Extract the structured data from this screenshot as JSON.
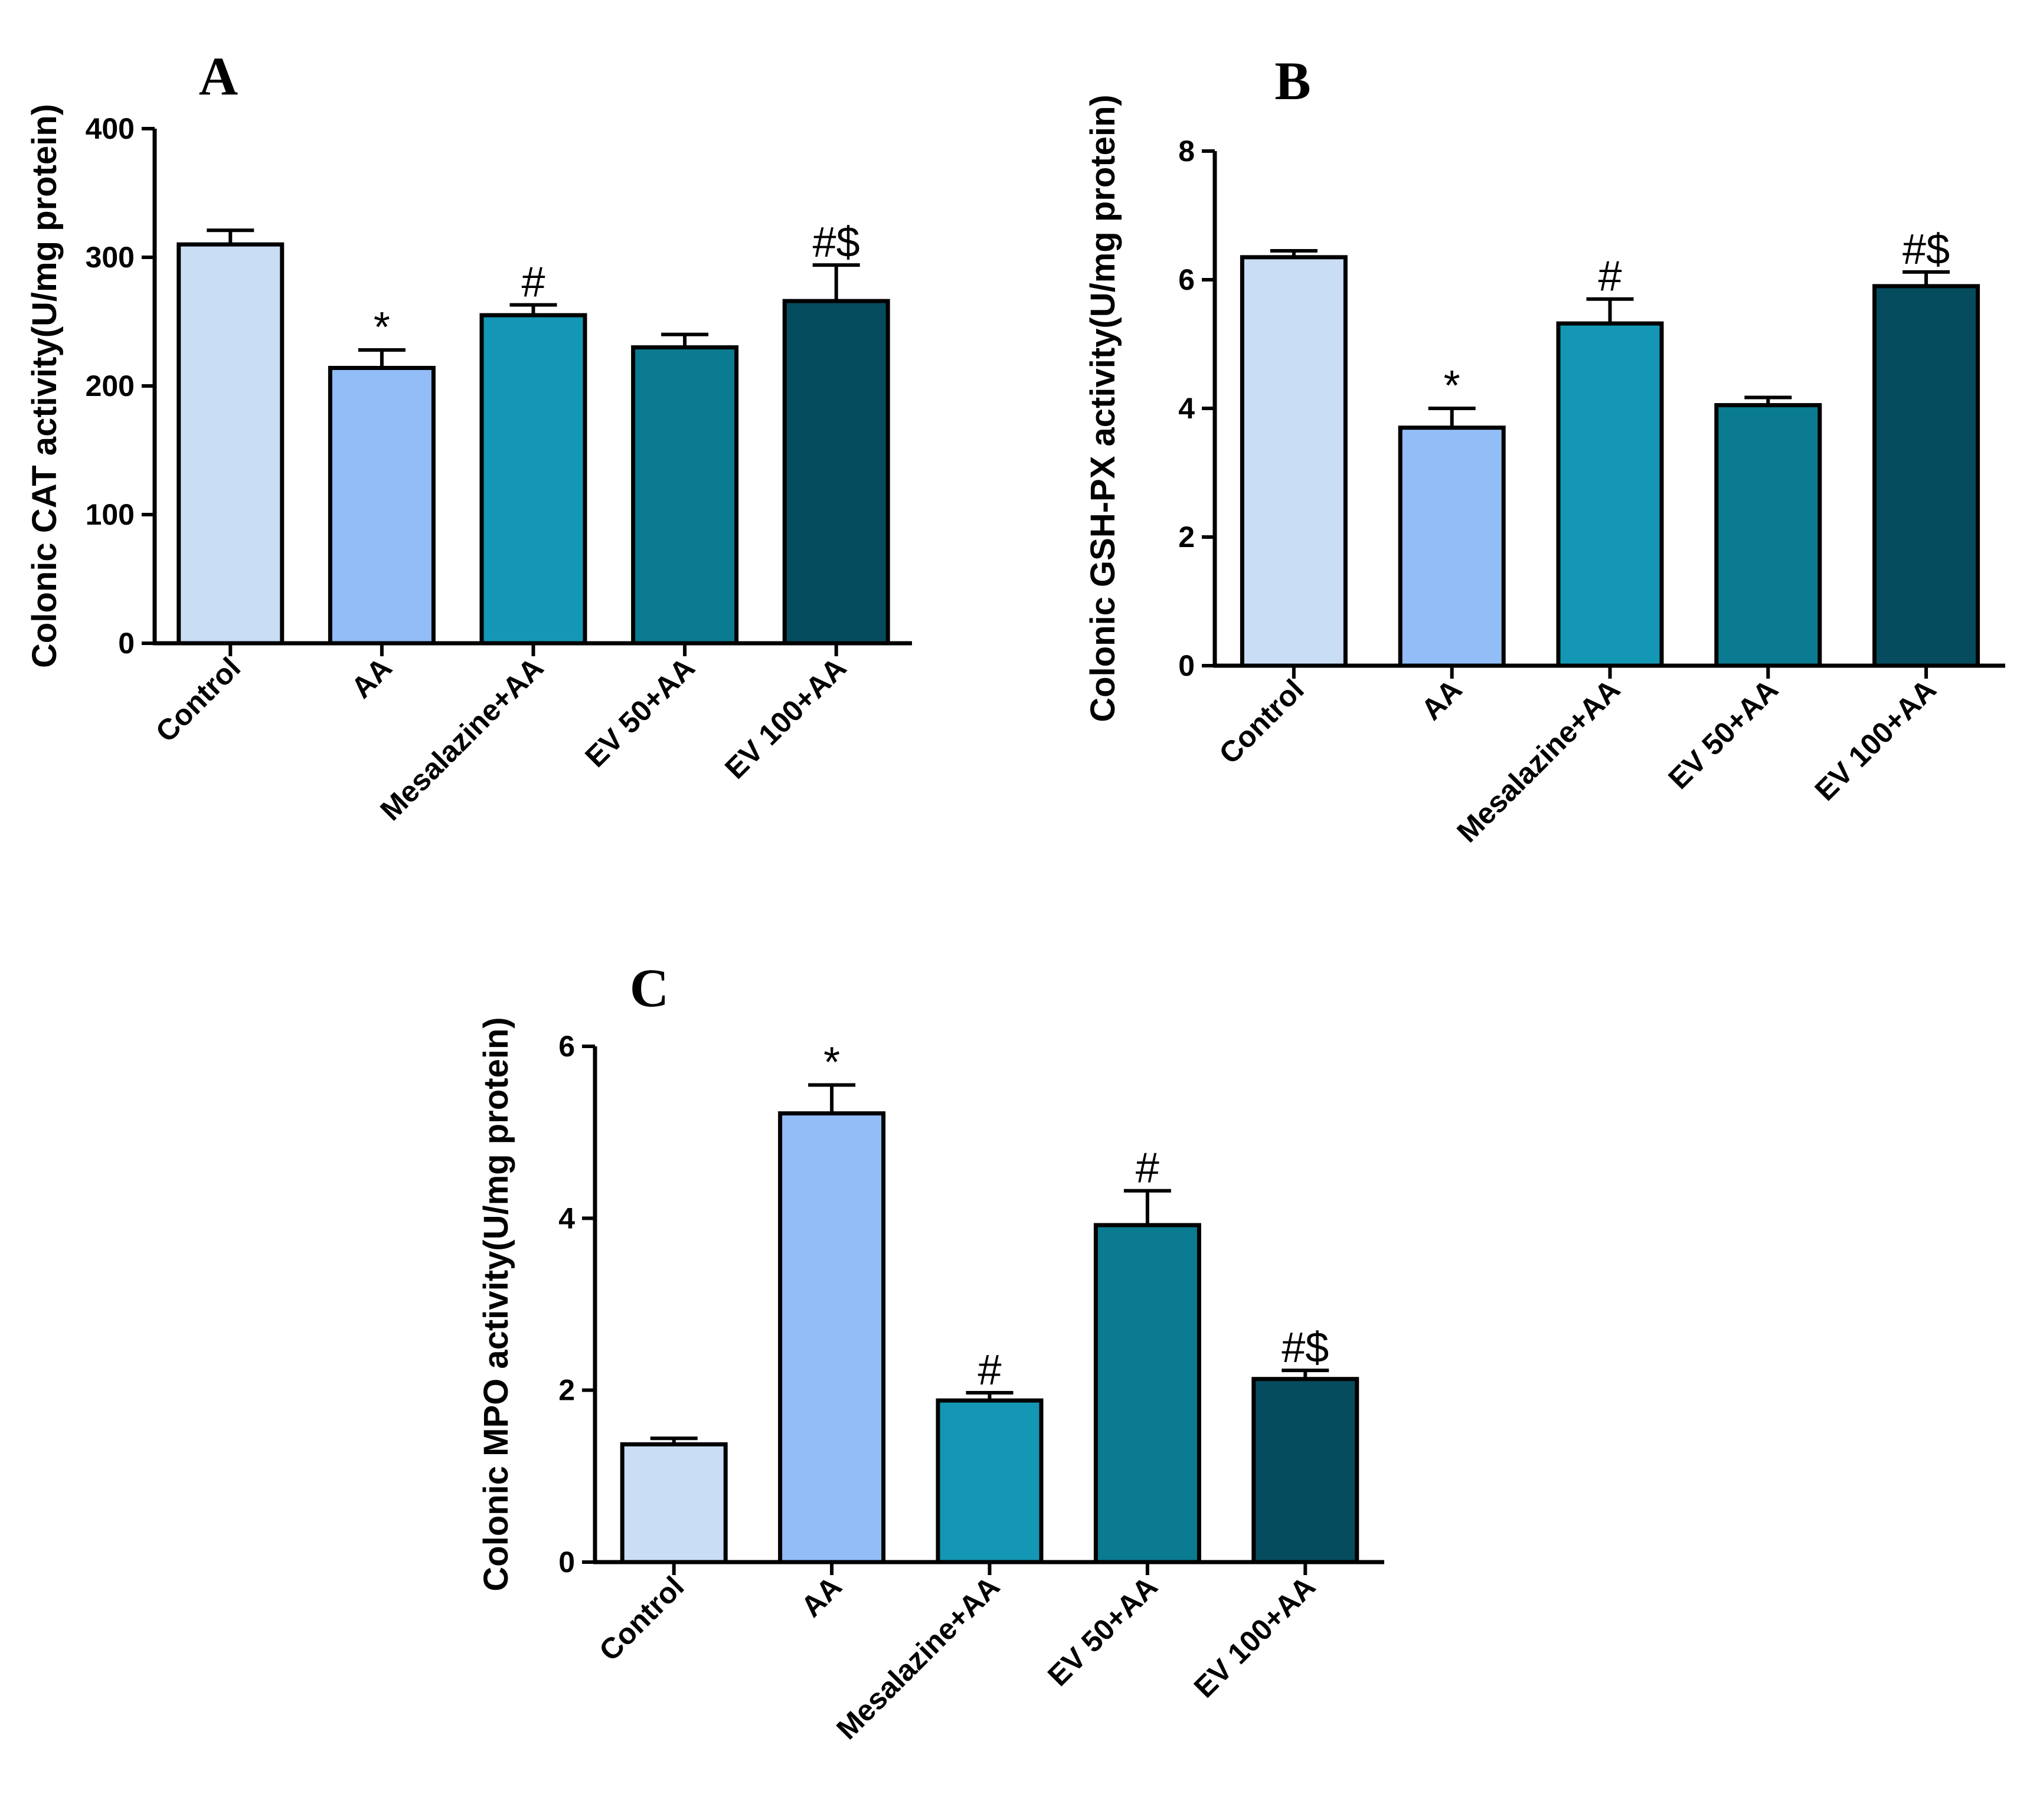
{
  "colors": {
    "Control": "#c9ddf5",
    "AA": "#92bdf7",
    "Mesalazine+AA": "#1497b4",
    "EV 50+AA": "#0b7b91",
    "EV 100+AA": "#064c5f",
    "outline": "#000000"
  },
  "chart_data": [
    {
      "type": "bar",
      "panel": "A",
      "title": "",
      "xlabel": "",
      "ylabel": "Colonic CAT activity(U/mg protein)",
      "ylim": [
        0,
        400
      ],
      "yticks": [
        "0",
        "100",
        "200",
        "300",
        "400"
      ],
      "categories": [
        "Control",
        "AA",
        "Mesalazine+AA",
        "EV 50+AA",
        "EV 100+AA"
      ],
      "values": [
        310,
        214,
        255,
        230,
        266
      ],
      "errors": [
        11,
        14,
        8,
        10,
        28
      ],
      "annotations": [
        "",
        "*",
        "#",
        "",
        "#$"
      ]
    },
    {
      "type": "bar",
      "panel": "B",
      "title": "",
      "xlabel": "",
      "ylabel": "Colonic GSH-PX activity(U/mg protein)",
      "ylim": [
        0,
        8
      ],
      "yticks": [
        "0",
        "2",
        "4",
        "6",
        "8"
      ],
      "categories": [
        "Control",
        "AA",
        "Mesalazine+AA",
        "EV 50+AA",
        "EV 100+AA"
      ],
      "values": [
        6.35,
        3.7,
        5.32,
        4.05,
        5.9
      ],
      "errors": [
        0.1,
        0.3,
        0.38,
        0.12,
        0.22
      ],
      "annotations": [
        "",
        "*",
        "#",
        "",
        "#$"
      ]
    },
    {
      "type": "bar",
      "panel": "C",
      "title": "",
      "xlabel": "",
      "ylabel": "Colonic MPO activity(U/mg protein)",
      "ylim": [
        0,
        6
      ],
      "yticks": [
        "0",
        "2",
        "4",
        "6"
      ],
      "categories": [
        "Control",
        "AA",
        "Mesalazine+AA",
        "EV 50+AA",
        "EV 100+AA"
      ],
      "values": [
        1.37,
        5.22,
        1.88,
        3.92,
        2.13
      ],
      "errors": [
        0.07,
        0.33,
        0.09,
        0.4,
        0.1
      ],
      "annotations": [
        "",
        "*",
        "#",
        "#",
        "#$"
      ]
    }
  ]
}
